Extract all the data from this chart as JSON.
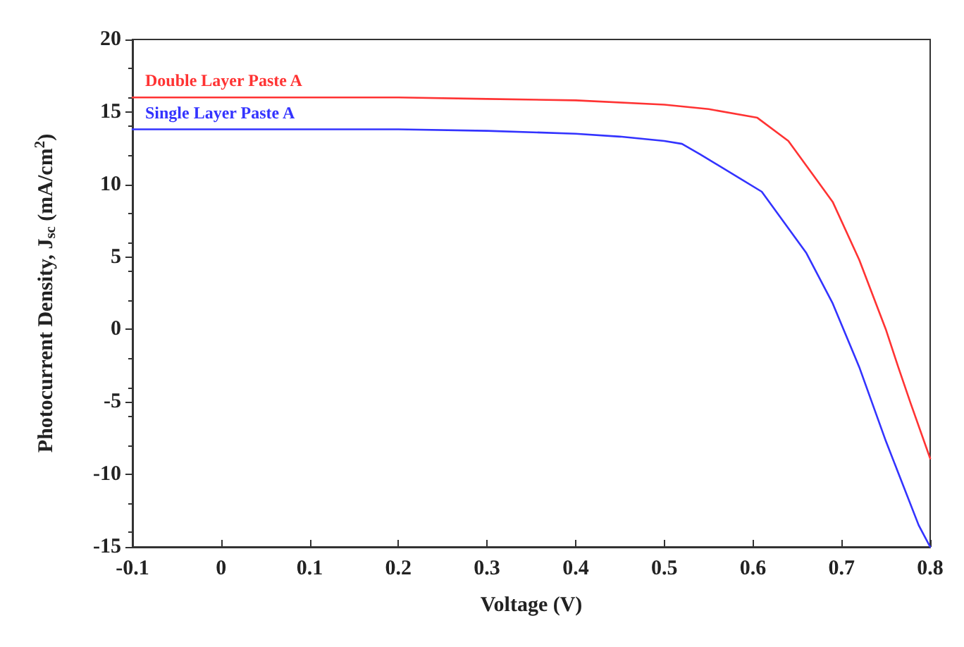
{
  "chart_data": {
    "type": "line",
    "xlabel": "Voltage (V)",
    "ylabel": "Photocurrent Density, J$_{sc}$ (mA/cm$^{2}$)",
    "xlim": [
      -0.1,
      0.8
    ],
    "xticks": [
      -0.1,
      0,
      0.1,
      0.2,
      0.3,
      0.4,
      0.5,
      0.6,
      0.7,
      0.8
    ],
    "ylim": [
      -15,
      20
    ],
    "yticks": [
      -15,
      -10,
      -5,
      0,
      5,
      10,
      15,
      20
    ],
    "grid": false,
    "legend": false,
    "marker": "none",
    "line_style": "solid",
    "series": [
      {
        "name": "Double Layer Paste A",
        "color": "#ff3333",
        "x": [
          -0.1,
          0.1,
          0.2,
          0.3,
          0.4,
          0.5,
          0.55,
          0.605,
          0.64,
          0.69,
          0.72,
          0.75,
          0.764,
          0.778,
          0.8
        ],
        "values": [
          16.0,
          16.0,
          16.0,
          15.9,
          15.8,
          15.5,
          15.2,
          14.6,
          13.0,
          8.8,
          4.8,
          0.0,
          -2.6,
          -5.1,
          -8.9
        ]
      },
      {
        "name": "Single Layer Paste A",
        "color": "#3333ff",
        "x": [
          -0.1,
          0.1,
          0.2,
          0.3,
          0.4,
          0.45,
          0.5,
          0.52,
          0.54,
          0.61,
          0.66,
          0.69,
          0.72,
          0.75,
          0.787,
          0.8
        ],
        "values": [
          13.8,
          13.8,
          13.8,
          13.7,
          13.5,
          13.3,
          13.0,
          12.8,
          12.1,
          9.5,
          5.3,
          1.8,
          -2.6,
          -7.7,
          -13.5,
          -15.0
        ]
      }
    ]
  }
}
